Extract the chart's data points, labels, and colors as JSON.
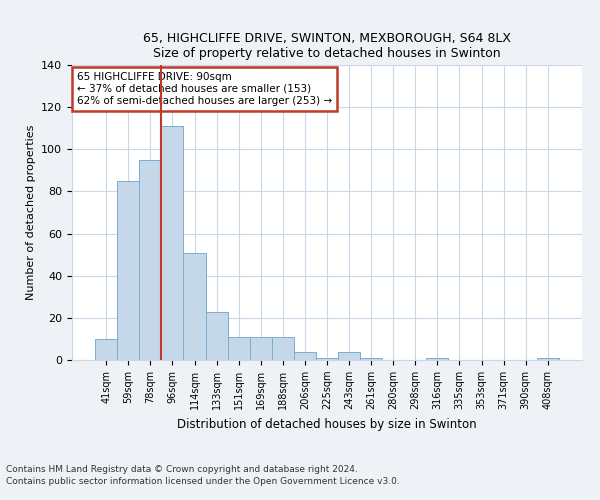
{
  "title1": "65, HIGHCLIFFE DRIVE, SWINTON, MEXBOROUGH, S64 8LX",
  "title2": "Size of property relative to detached houses in Swinton",
  "xlabel": "Distribution of detached houses by size in Swinton",
  "ylabel": "Number of detached properties",
  "categories": [
    "41sqm",
    "59sqm",
    "78sqm",
    "96sqm",
    "114sqm",
    "133sqm",
    "151sqm",
    "169sqm",
    "188sqm",
    "206sqm",
    "225sqm",
    "243sqm",
    "261sqm",
    "280sqm",
    "298sqm",
    "316sqm",
    "335sqm",
    "353sqm",
    "371sqm",
    "390sqm",
    "408sqm"
  ],
  "values": [
    10,
    85,
    95,
    111,
    51,
    23,
    11,
    11,
    11,
    4,
    1,
    4,
    1,
    0,
    0,
    1,
    0,
    0,
    0,
    0,
    1
  ],
  "bar_color": "#c5d8ea",
  "bar_edge_color": "#7aaed0",
  "vline_color": "#c0392b",
  "annotation_text": "65 HIGHCLIFFE DRIVE: 90sqm\n← 37% of detached houses are smaller (153)\n62% of semi-detached houses are larger (253) →",
  "annotation_box_color": "white",
  "annotation_box_edge": "#c0392b",
  "ylim": [
    0,
    140
  ],
  "yticks": [
    0,
    20,
    40,
    60,
    80,
    100,
    120,
    140
  ],
  "footnote1": "Contains HM Land Registry data © Crown copyright and database right 2024.",
  "footnote2": "Contains public sector information licensed under the Open Government Licence v3.0.",
  "bg_color": "#eef2f7",
  "plot_bg_color": "#ffffff",
  "grid_color": "#c8d8e8"
}
